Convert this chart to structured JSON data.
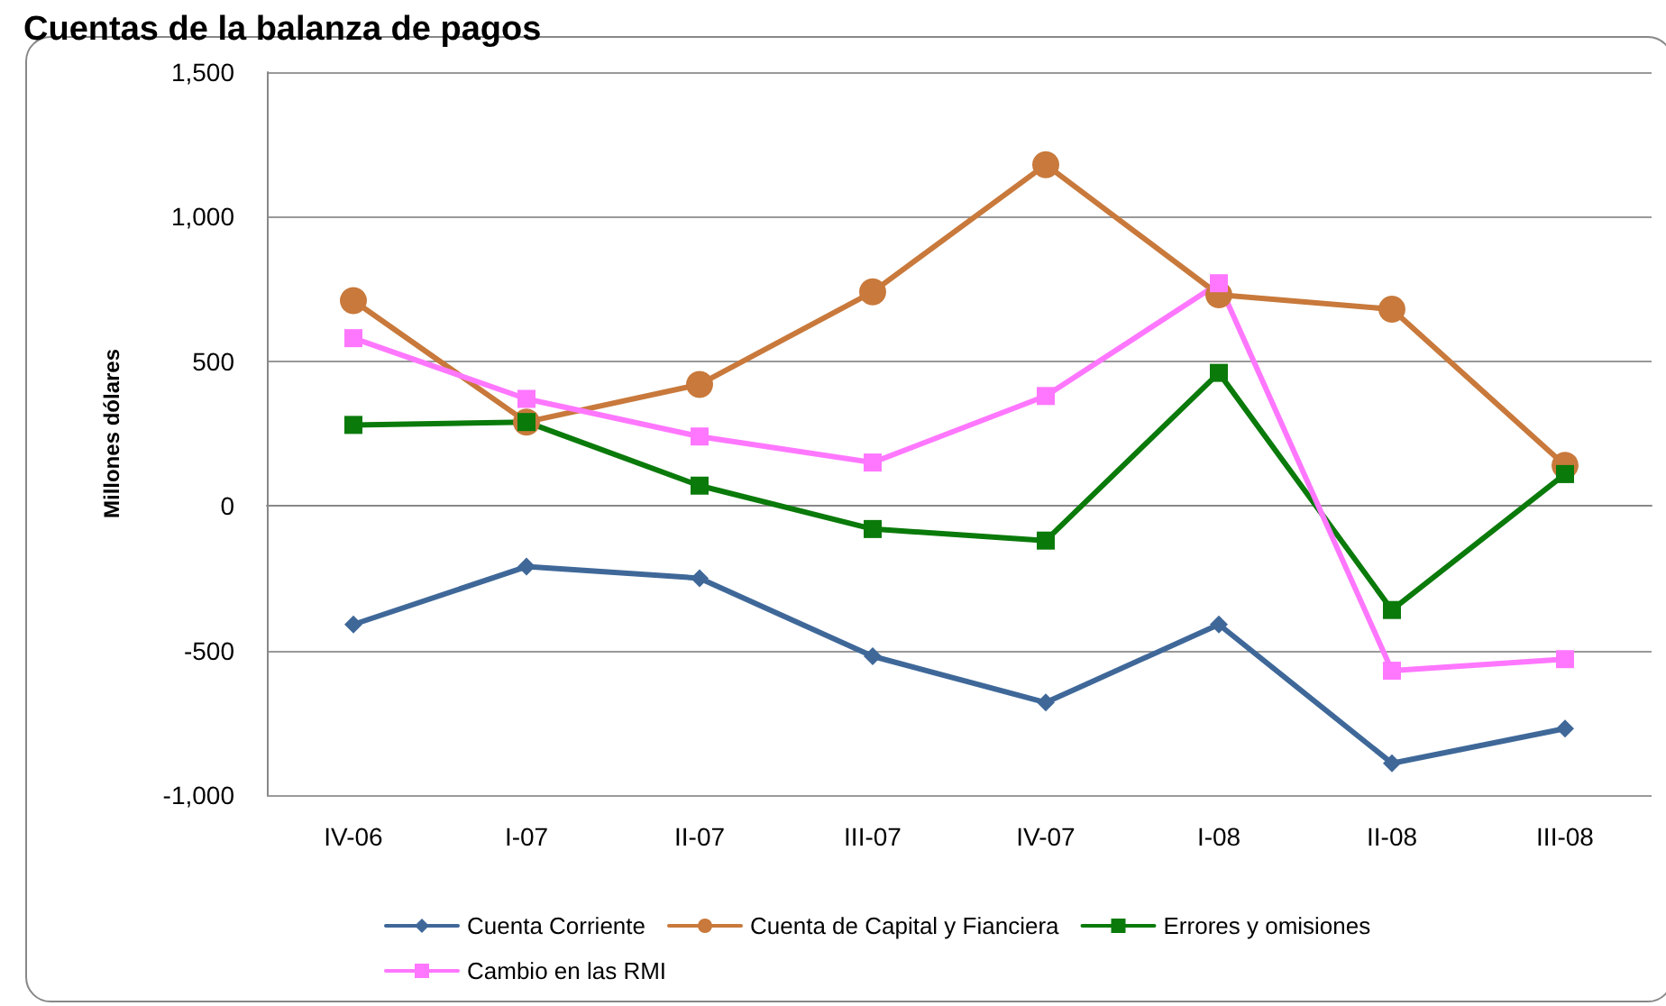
{
  "chart_data": {
    "type": "line",
    "title": "Cuentas de la balanza de pagos",
    "ylabel": "Millones dólares",
    "categories": [
      "IV-06",
      "I-07",
      "II-07",
      "III-07",
      "IV-07",
      "I-08",
      "II-08",
      "III-08"
    ],
    "series": [
      {
        "name": "Cuenta Corriente",
        "color": "#3f6899",
        "marker": "diamond",
        "values": [
          -410,
          -210,
          -250,
          -520,
          -680,
          -410,
          -890,
          -770
        ]
      },
      {
        "name": "Cuenta de Capital y Fianciera",
        "color": "#c8793b",
        "marker": "circle",
        "values": [
          710,
          290,
          420,
          740,
          1180,
          730,
          680,
          140
        ]
      },
      {
        "name": "Errores y omisiones",
        "color": "#0a7a0a",
        "marker": "square",
        "values": [
          280,
          290,
          70,
          -80,
          -120,
          460,
          -360,
          110
        ]
      },
      {
        "name": "Cambio en las RMI",
        "color": "#ff77ff",
        "marker": "square",
        "values": [
          580,
          370,
          240,
          150,
          380,
          770,
          -570,
          -530
        ]
      }
    ],
    "ylim": [
      -1000,
      1500
    ],
    "yticks": [
      {
        "value": -1000,
        "label": "-1,000"
      },
      -500,
      0,
      500,
      {
        "value": 1000,
        "label": "1,000"
      },
      {
        "value": 1500,
        "label": "1,500"
      }
    ],
    "grid": "y",
    "legend": "bottom",
    "line_style": "solid"
  }
}
